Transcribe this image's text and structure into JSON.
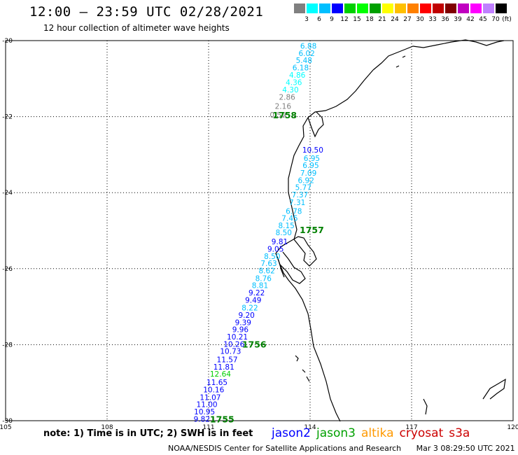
{
  "header": {
    "title": "12:00 — 23:59 UTC 02/28/2021",
    "subtitle": "12 hour collection of altimeter wave heights"
  },
  "colorbar": {
    "unit": "(ft)",
    "swatches": [
      "#808080",
      "#00ffff",
      "#00bfff",
      "#0000ff",
      "#00d000",
      "#00ff00",
      "#00a000",
      "#ffff00",
      "#ffc000",
      "#ff8000",
      "#ff0000",
      "#c00000",
      "#800000",
      "#c000c0",
      "#ff00ff",
      "#c080ff",
      "#000000"
    ],
    "labels": [
      "3",
      "6",
      "9",
      "12",
      "15",
      "18",
      "21",
      "24",
      "27",
      "30",
      "33",
      "36",
      "39",
      "42",
      "45",
      "70"
    ]
  },
  "map": {
    "lon_min": 105,
    "lon_max": 120,
    "lat_min": -30,
    "lat_max": -20,
    "lon_ticks": [
      "105",
      "108",
      "111",
      "114",
      "117",
      "120"
    ],
    "lat_ticks": [
      "-20",
      "-22",
      "-24",
      "-26",
      "-28",
      "-30"
    ],
    "time_labels": [
      {
        "text": "1758",
        "lon": 113.25,
        "lat": -21.95
      },
      {
        "text": "1757",
        "lon": 114.05,
        "lat": -24.97
      },
      {
        "text": "1756",
        "lon": 112.35,
        "lat": -27.98
      },
      {
        "text": "1755",
        "lon": 111.4,
        "lat": -29.95
      }
    ]
  },
  "track": [
    {
      "v": "6.88",
      "lon": 113.95,
      "lat": -20.14,
      "c": "#00bfff"
    },
    {
      "v": "6.02",
      "lon": 113.9,
      "lat": -20.33,
      "c": "#00bfff"
    },
    {
      "v": "5.48",
      "lon": 113.82,
      "lat": -20.52,
      "c": "#00bfff"
    },
    {
      "v": "6.18",
      "lon": 113.72,
      "lat": -20.71,
      "c": "#00bfff"
    },
    {
      "v": "4.86",
      "lon": 113.62,
      "lat": -20.9,
      "c": "#00ffff"
    },
    {
      "v": "4.36",
      "lon": 113.52,
      "lat": -21.1,
      "c": "#00ffff"
    },
    {
      "v": "4.30",
      "lon": 113.42,
      "lat": -21.29,
      "c": "#00ffff"
    },
    {
      "v": "2.86",
      "lon": 113.32,
      "lat": -21.48,
      "c": "#808080"
    },
    {
      "v": "2.16",
      "lon": 113.2,
      "lat": -21.72,
      "c": "#808080"
    },
    {
      "v": "0.59",
      "lon": 113.05,
      "lat": -21.95,
      "c": "#808080"
    },
    {
      "v": "10.50",
      "lon": 114.08,
      "lat": -22.87,
      "c": "#0000ff"
    },
    {
      "v": "6.95",
      "lon": 114.05,
      "lat": -23.09,
      "c": "#00bfff"
    },
    {
      "v": "6.95",
      "lon": 114.02,
      "lat": -23.28,
      "c": "#00bfff"
    },
    {
      "v": "7.09",
      "lon": 113.95,
      "lat": -23.48,
      "c": "#00bfff"
    },
    {
      "v": "6.92",
      "lon": 113.88,
      "lat": -23.67,
      "c": "#00bfff"
    },
    {
      "v": "5.77",
      "lon": 113.8,
      "lat": -23.86,
      "c": "#00bfff"
    },
    {
      "v": "7.37",
      "lon": 113.7,
      "lat": -24.05,
      "c": "#00bfff"
    },
    {
      "v": "7.31",
      "lon": 113.62,
      "lat": -24.25,
      "c": "#00bfff"
    },
    {
      "v": "6.78",
      "lon": 113.52,
      "lat": -24.48,
      "c": "#00bfff"
    },
    {
      "v": "7.45",
      "lon": 113.4,
      "lat": -24.67,
      "c": "#00bfff"
    },
    {
      "v": "8.15",
      "lon": 113.3,
      "lat": -24.86,
      "c": "#00bfff"
    },
    {
      "v": "8.50",
      "lon": 113.22,
      "lat": -25.05,
      "c": "#00bfff"
    },
    {
      "v": "9.81",
      "lon": 113.1,
      "lat": -25.29,
      "c": "#0000ff"
    },
    {
      "v": "9.05",
      "lon": 112.98,
      "lat": -25.48,
      "c": "#0000ff"
    },
    {
      "v": "8.50",
      "lon": 112.88,
      "lat": -25.67,
      "c": "#00bfff"
    },
    {
      "v": "7.63",
      "lon": 112.78,
      "lat": -25.86,
      "c": "#00bfff"
    },
    {
      "v": "8.62",
      "lon": 112.72,
      "lat": -26.05,
      "c": "#00bfff"
    },
    {
      "v": "8.76",
      "lon": 112.62,
      "lat": -26.25,
      "c": "#00bfff"
    },
    {
      "v": "8.81",
      "lon": 112.52,
      "lat": -26.44,
      "c": "#00bfff"
    },
    {
      "v": "9.22",
      "lon": 112.42,
      "lat": -26.63,
      "c": "#0000ff"
    },
    {
      "v": "9.49",
      "lon": 112.32,
      "lat": -26.82,
      "c": "#0000ff"
    },
    {
      "v": "8.22",
      "lon": 112.22,
      "lat": -27.03,
      "c": "#00bfff"
    },
    {
      "v": "9.20",
      "lon": 112.12,
      "lat": -27.22,
      "c": "#0000ff"
    },
    {
      "v": "9.39",
      "lon": 112.02,
      "lat": -27.41,
      "c": "#0000ff"
    },
    {
      "v": "9.96",
      "lon": 111.94,
      "lat": -27.6,
      "c": "#0000ff"
    },
    {
      "v": "10.21",
      "lon": 111.85,
      "lat": -27.79,
      "c": "#0000ff"
    },
    {
      "v": "10.26",
      "lon": 111.75,
      "lat": -27.98,
      "c": "#0000ff"
    },
    {
      "v": "10.73",
      "lon": 111.65,
      "lat": -28.17,
      "c": "#0000ff"
    },
    {
      "v": "11.57",
      "lon": 111.55,
      "lat": -28.39,
      "c": "#0000ff"
    },
    {
      "v": "11.81",
      "lon": 111.45,
      "lat": -28.58,
      "c": "#0000ff"
    },
    {
      "v": "12.64",
      "lon": 111.35,
      "lat": -28.77,
      "c": "#00d000"
    },
    {
      "v": "11.65",
      "lon": 111.25,
      "lat": -28.99,
      "c": "#0000ff"
    },
    {
      "v": "10.16",
      "lon": 111.15,
      "lat": -29.18,
      "c": "#0000ff"
    },
    {
      "v": "11.07",
      "lon": 111.05,
      "lat": -29.38,
      "c": "#0000ff"
    },
    {
      "v": "11.00",
      "lon": 110.95,
      "lat": -29.57,
      "c": "#0000ff"
    },
    {
      "v": "10.95",
      "lon": 110.88,
      "lat": -29.76,
      "c": "#0000ff"
    },
    {
      "v": "9.82",
      "lon": 110.8,
      "lat": -29.95,
      "c": "#0000ff"
    }
  ],
  "footer": {
    "note": "note: 1) Time is in UTC; 2) SWH is in feet",
    "satellites": [
      {
        "name": "jason2",
        "color": "#0000ff"
      },
      {
        "name": "jason3",
        "color": "#00a000"
      },
      {
        "name": "altika",
        "color": "#ff9900"
      },
      {
        "name": "cryosat",
        "color": "#cc0000"
      },
      {
        "name": "s3a",
        "color": "#cc0000"
      }
    ],
    "credit": "NOAA/NESDIS Center for Satellite Applications and Research",
    "timestamp": "Mar  3 08:29:50 UTC 2021"
  }
}
